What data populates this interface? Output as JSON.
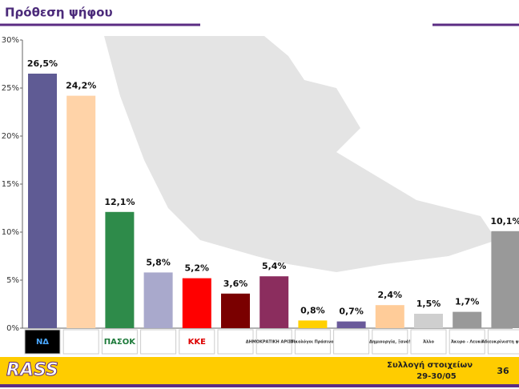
{
  "chart_data": {
    "type": "bar",
    "title": "Πρόθεση ψήφου",
    "categories": [
      "ΝΔ",
      null,
      "ΠΑΣΟΚ",
      null,
      "ΚΚΕ",
      null,
      "ΔΗΜΟΚΡΑΤΙΚΗ ΑΡΙΣΤΕΡΑ",
      "Οικολόγοι Πράσινοι",
      null,
      "Δημιουργία, Ξανά!",
      "Άλλο",
      "Άκυρο - Λευκό",
      "Αδιευκρίνιστη ψήφος"
    ],
    "values": [
      26.5,
      24.2,
      12.1,
      5.8,
      5.2,
      3.6,
      5.4,
      0.8,
      0.7,
      2.4,
      1.5,
      1.7,
      10.1
    ],
    "value_labels": [
      "26,5%",
      "24,2%",
      "12,1%",
      "5,8%",
      "5,2%",
      "3,6%",
      "5,4%",
      "0,8%",
      "0,7%",
      "2,4%",
      "1,5%",
      "1,7%",
      "10,1%"
    ],
    "colors": [
      "#5f5b94",
      "#ffd3a8",
      "#2e8b4a",
      "#a9a9cc",
      "#ff0000",
      "#7a0000",
      "#8b2d5e",
      "#ffd000",
      "#6a5a9a",
      "#ffcc99",
      "#cfcfcf",
      "#999999",
      "#999999"
    ],
    "ylim": [
      0,
      30
    ],
    "yticks": [
      {
        "value": 0,
        "label": "0%"
      },
      {
        "value": 5,
        "label": "5%"
      },
      {
        "value": 10,
        "label": "10%"
      },
      {
        "value": 15,
        "label": "15%"
      },
      {
        "value": 20,
        "label": "20%"
      },
      {
        "value": 25,
        "label": "25%"
      },
      {
        "value": 30,
        "label": "30%"
      }
    ]
  },
  "footer": {
    "logo": "RASS",
    "line1": "Συλλογή στοιχείων",
    "line2": "29-30/05",
    "page": "36"
  }
}
